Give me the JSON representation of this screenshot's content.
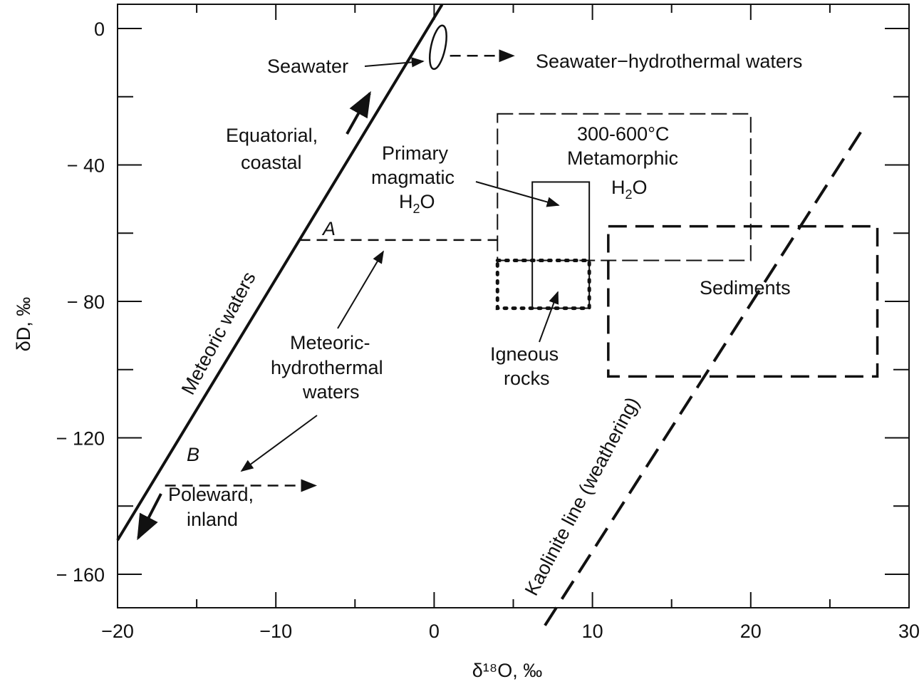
{
  "chart_data": {
    "type": "scatter",
    "xlabel": "δ¹⁸O, ‰",
    "ylabel": "δD, ‰",
    "xlim": [
      -20,
      30
    ],
    "ylim": [
      -170,
      8
    ],
    "x_ticks": [
      -20,
      -10,
      0,
      10,
      20,
      30
    ],
    "x_tick_labels": [
      "−20",
      "−10",
      "0",
      "10",
      "20",
      "30"
    ],
    "y_ticks": [
      0,
      -40,
      -80,
      -120,
      -160
    ],
    "y_tick_labels": [
      "0",
      "− 40",
      "− 80",
      "− 120",
      "− 160"
    ],
    "x_minor_ticks": [
      -15,
      -5,
      5,
      15,
      25
    ],
    "y_minor_ticks": [
      -20,
      -60,
      -100,
      -140
    ],
    "grid": false,
    "series": [
      {
        "name": "Meteoric waters",
        "kind": "solid-line",
        "x": [
          -20,
          0.5
        ],
        "y": [
          -150,
          7
        ]
      },
      {
        "name": "Kaolinite line (weathering)",
        "kind": "dashed-line",
        "x": [
          7,
          27
        ],
        "y": [
          -175,
          -30
        ]
      },
      {
        "name": "Meteoric-hydrothermal waters A",
        "kind": "dashed-line",
        "x": [
          -8.5,
          4
        ],
        "y": [
          -62,
          -62
        ]
      },
      {
        "name": "Meteoric-hydrothermal waters B",
        "kind": "dashed-line",
        "x": [
          -17,
          -7.5
        ],
        "y": [
          -134,
          -134
        ]
      },
      {
        "name": "Seawater-hydrothermal waters",
        "kind": "dashed-line",
        "x": [
          1,
          5
        ],
        "y": [
          -8,
          -8
        ]
      }
    ],
    "regions": [
      {
        "name": "300-600°C Metamorphic H2O",
        "style": "dashed",
        "x": [
          4,
          20
        ],
        "y": [
          -68,
          -25
        ]
      },
      {
        "name": "Primary magmatic H2O",
        "style": "solid",
        "x": [
          6.2,
          9.8
        ],
        "y": [
          -82,
          -45
        ]
      },
      {
        "name": "Igneous rocks",
        "style": "dotted",
        "x": [
          4,
          9.8
        ],
        "y": [
          -82,
          -68
        ]
      },
      {
        "name": "Sediments",
        "style": "dashed-bold",
        "x": [
          11,
          28
        ],
        "y": [
          -102,
          -58
        ]
      },
      {
        "name": "Seawater",
        "style": "ellipse",
        "x": [
          -0.2,
          0.7
        ],
        "y": [
          -12,
          1
        ]
      }
    ],
    "labels": {
      "seawater": "Seawater",
      "seawater_hydrothermal": "Seawater−hydrothermal waters",
      "equatorial_1": "Equatorial,",
      "equatorial_2": "coastal",
      "metamorphic_1": "300-600°C",
      "metamorphic_2": "Metamorphic",
      "metamorphic_3_main": "H",
      "metamorphic_3_sub": "2",
      "metamorphic_3_end": "O",
      "primary_1": "Primary",
      "primary_2": "magmatic",
      "primary_3_main": "H",
      "primary_3_sub": "2",
      "primary_3_end": "O",
      "point_a": "A",
      "point_b": "B",
      "meteoric_waters": "Meteoric waters",
      "sediments": "Sediments",
      "mh_1": "Meteoric-",
      "mh_2": "hydrothermal",
      "mh_3": "waters",
      "igneous_1": "Igneous",
      "igneous_2": "rocks",
      "poleward_1": "Poleward,",
      "poleward_2": "inland",
      "kaolinite": "Kaolinite line (weathering)"
    }
  }
}
